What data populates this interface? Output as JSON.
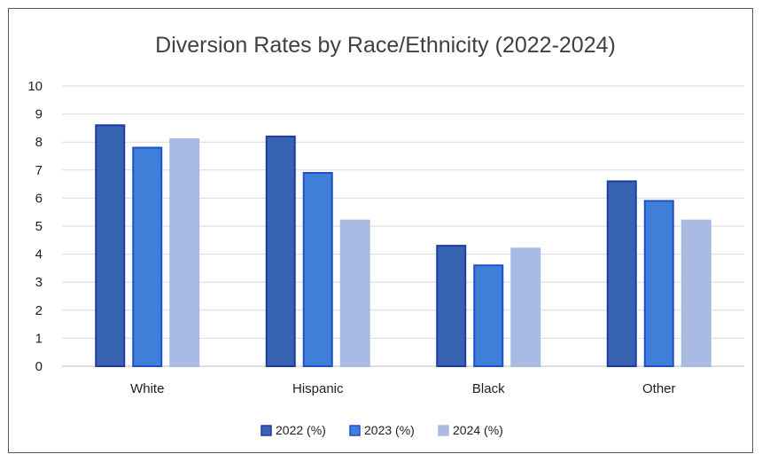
{
  "chart_data": {
    "type": "bar",
    "title": "Diversion Rates by Race/Ethnicity (2022-2024)",
    "xlabel": "",
    "ylabel": "",
    "categories": [
      "White",
      "Hispanic",
      "Black",
      "Other"
    ],
    "ylim": [
      0,
      10
    ],
    "yticks": [
      "0",
      "1",
      "2",
      "3",
      "4",
      "5",
      "6",
      "7",
      "8",
      "9",
      "10"
    ],
    "grid": true,
    "legend_position": "bottom",
    "series": [
      {
        "name": "2022 (%)",
        "values": [
          8.6,
          8.2,
          4.3,
          6.6
        ],
        "color": "#3763b0",
        "edge": "#1f3aa3"
      },
      {
        "name": "2023 (%)",
        "values": [
          7.8,
          6.9,
          3.6,
          5.9
        ],
        "color": "#3f7fd8",
        "edge": "#1d4fd0"
      },
      {
        "name": "2024 (%)",
        "values": [
          8.1,
          5.2,
          4.2,
          5.2
        ],
        "color": "#a9bbe2",
        "edge": "#a9bbe2"
      }
    ]
  }
}
